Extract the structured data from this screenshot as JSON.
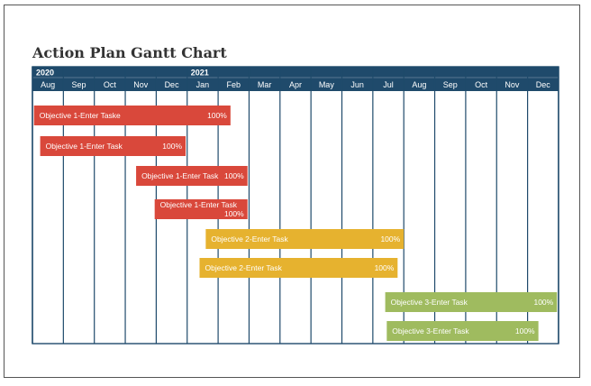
{
  "page": {
    "title": "Action Plan Gantt Chart"
  },
  "chart_data": {
    "type": "gantt",
    "title": "Action Plan Gantt Chart",
    "years": [
      {
        "label": "2020",
        "start_index": 0
      },
      {
        "label": "2021",
        "start_index": 5
      }
    ],
    "months": [
      "Aug",
      "Sep",
      "Oct",
      "Nov",
      "Dec",
      "Jan",
      "Feb",
      "Mar",
      "Apr",
      "May",
      "Jun",
      "Jul",
      "Aug",
      "Sep",
      "Oct",
      "Nov",
      "Dec"
    ],
    "colors": {
      "header": "#1f4a6b",
      "grid": "#1f4a6b",
      "objective_1": "#d9483b",
      "objective_2": "#e6b22f",
      "objective_3": "#9fbb5f"
    },
    "tasks": [
      {
        "label": "Objective 1-Enter Taske",
        "progress": "100%",
        "group": "objective_1",
        "start": 0.05,
        "end": 6.4
      },
      {
        "label": "Objective 1-Enter Task",
        "progress": "100%",
        "group": "objective_1",
        "start": 0.25,
        "end": 4.95
      },
      {
        "label": "Objective 1-Enter Task",
        "progress": "100%",
        "group": "objective_1",
        "start": 3.35,
        "end": 6.95
      },
      {
        "label": "Objective 1-Enter Task",
        "progress": "100%",
        "group": "objective_1",
        "start": 3.95,
        "end": 6.95,
        "wrap": true
      },
      {
        "label": "Objective 2-Enter Task",
        "progress": "100%",
        "group": "objective_2",
        "start": 5.6,
        "end": 12.0
      },
      {
        "label": "Objective 2-Enter Task",
        "progress": "100%",
        "group": "objective_2",
        "start": 5.4,
        "end": 11.8
      },
      {
        "label": "Objective 3-Enter Task",
        "progress": "100%",
        "group": "objective_3",
        "start": 11.4,
        "end": 16.95
      },
      {
        "label": "Objective 3-Enter Task",
        "progress": "100%",
        "group": "objective_3",
        "start": 11.45,
        "end": 16.35
      }
    ]
  }
}
